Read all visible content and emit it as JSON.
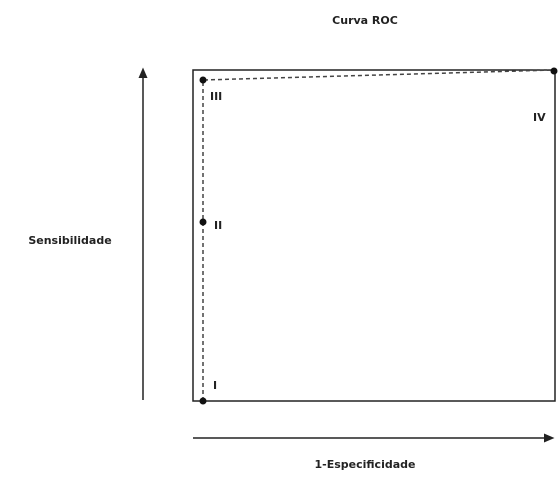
{
  "title": "Curva ROC",
  "y_axis_label": "Sensibilidade",
  "x_axis_label": "1-Especificidade",
  "points": [
    {
      "label": "I"
    },
    {
      "label": "II"
    },
    {
      "label": "III"
    },
    {
      "label": "IV"
    }
  ]
}
